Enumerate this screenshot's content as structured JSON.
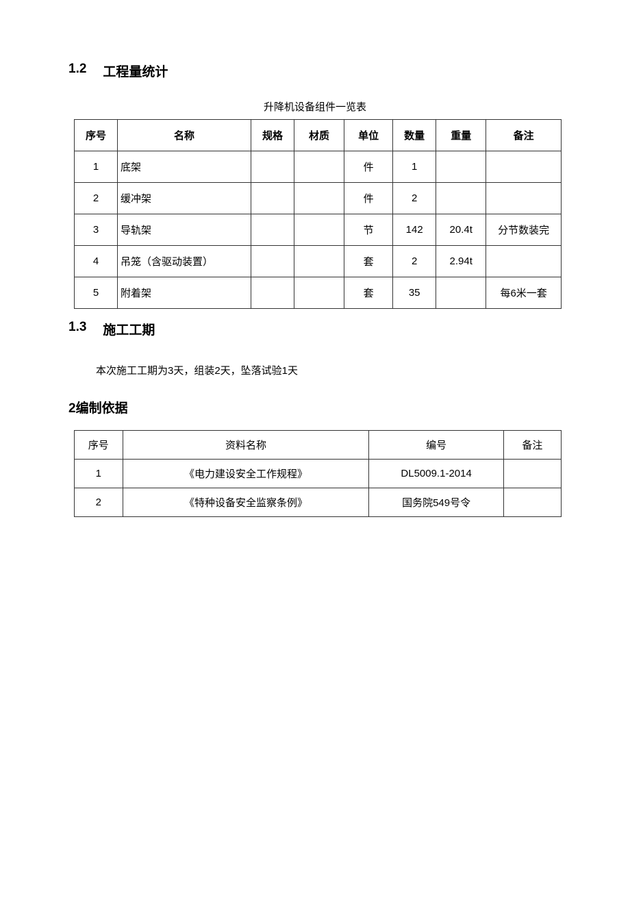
{
  "section12": {
    "number": "1.2",
    "title": "工程量统计"
  },
  "table1": {
    "caption": "升降机设备组件一览表",
    "columns": [
      "序号",
      "名称",
      "规格",
      "材质",
      "单位",
      "数量",
      "重量",
      "备注"
    ],
    "rows": [
      [
        "1",
        "底架",
        "",
        "",
        "件",
        "1",
        "",
        ""
      ],
      [
        "2",
        "缓冲架",
        "",
        "",
        "件",
        "2",
        "",
        ""
      ],
      [
        "3",
        "导轨架",
        "",
        "",
        "节",
        "142",
        "20.4t",
        "分节数装完"
      ],
      [
        "4",
        "吊笼（含驱动装置）",
        "",
        "",
        "套",
        "2",
        "2.94t",
        ""
      ],
      [
        "5",
        "附着架",
        "",
        "",
        "套",
        "35",
        "",
        "每6米一套"
      ]
    ]
  },
  "section13": {
    "number": "1.3",
    "title": "施工工期",
    "body": "本次施工工期为3天，组装2天，坠落试验1天"
  },
  "section2": {
    "title": "2编制依据"
  },
  "table2": {
    "columns": [
      "序号",
      "资料名称",
      "编号",
      "备注"
    ],
    "rows": [
      [
        "1",
        "《电力建设安全工作规程》",
        "DL5009.1-2014",
        ""
      ],
      [
        "2",
        "《特种设备安全监察条例》",
        "国务院549号令",
        ""
      ]
    ]
  }
}
